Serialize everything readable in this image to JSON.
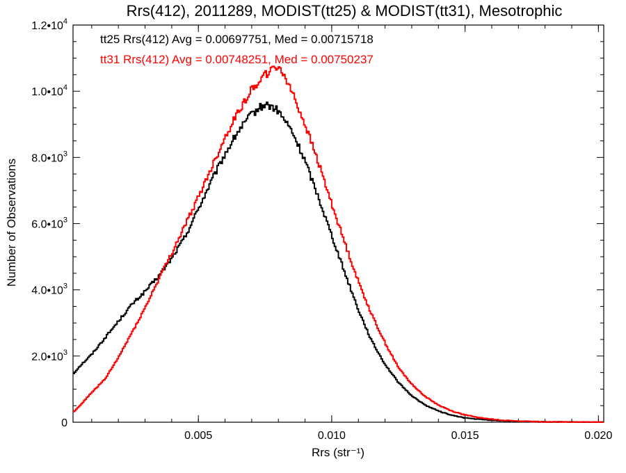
{
  "chart_data": {
    "type": "line",
    "title": "Rrs(412), 2011289, MODIST(tt25) & MODIST(tt31), Mesotrophic",
    "xlabel": "Rrs (str⁻¹)",
    "ylabel": "Number of Observations",
    "xlim": [
      0.0003,
      0.0202
    ],
    "ylim": [
      0,
      12000
    ],
    "xticks": [
      {
        "value": 0.005,
        "label": "0.005"
      },
      {
        "value": 0.01,
        "label": "0.010"
      },
      {
        "value": 0.015,
        "label": "0.015"
      },
      {
        "value": 0.02,
        "label": "0.020"
      }
    ],
    "yticks": [
      {
        "value": 0,
        "mant": "0",
        "exp": ""
      },
      {
        "value": 2000,
        "mant": "2.0•10",
        "exp": "3"
      },
      {
        "value": 4000,
        "mant": "4.0•10",
        "exp": "3"
      },
      {
        "value": 6000,
        "mant": "6.0•10",
        "exp": "3"
      },
      {
        "value": 8000,
        "mant": "8.0•10",
        "exp": "3"
      },
      {
        "value": 10000,
        "mant": "1.0•10",
        "exp": "4"
      },
      {
        "value": 12000,
        "mant": "1.2•10",
        "exp": "4"
      }
    ],
    "grid": false,
    "legend_position": "top-left",
    "series": [
      {
        "name": "tt25",
        "label": "tt25 Rrs(412) Avg = 0.00697751, Med = 0.00715718",
        "color": "#000000",
        "x": [
          0.0003,
          0.0005,
          0.001,
          0.0015,
          0.002,
          0.0025,
          0.003,
          0.0035,
          0.004,
          0.0045,
          0.005,
          0.0055,
          0.006,
          0.0065,
          0.007,
          0.0073,
          0.0075,
          0.0077,
          0.008,
          0.0085,
          0.009,
          0.0095,
          0.01,
          0.0105,
          0.011,
          0.0115,
          0.012,
          0.0125,
          0.013,
          0.0135,
          0.014,
          0.0145,
          0.015,
          0.0155,
          0.016,
          0.0165,
          0.017,
          0.0175,
          0.018,
          0.019,
          0.0202
        ],
        "y": [
          1450,
          1650,
          2050,
          2550,
          3050,
          3550,
          3950,
          4400,
          4950,
          5600,
          6450,
          7300,
          8100,
          8800,
          9300,
          9500,
          9600,
          9550,
          9400,
          8800,
          7900,
          6800,
          5650,
          4500,
          3400,
          2450,
          1750,
          1200,
          800,
          520,
          340,
          210,
          130,
          90,
          60,
          40,
          25,
          15,
          10,
          5,
          0
        ],
        "style": "step"
      },
      {
        "name": "tt31",
        "label": "tt31 Rrs(412) Avg = 0.00748251, Med = 0.00750237",
        "color": "#ff0000",
        "x": [
          0.0003,
          0.0005,
          0.001,
          0.0015,
          0.002,
          0.0025,
          0.003,
          0.0035,
          0.004,
          0.0045,
          0.005,
          0.0055,
          0.006,
          0.0065,
          0.007,
          0.0073,
          0.0075,
          0.0077,
          0.008,
          0.0083,
          0.0085,
          0.009,
          0.0095,
          0.01,
          0.0105,
          0.011,
          0.0115,
          0.012,
          0.0125,
          0.013,
          0.0135,
          0.014,
          0.0145,
          0.015,
          0.0155,
          0.016,
          0.0165,
          0.017,
          0.0175,
          0.018,
          0.019,
          0.0202
        ],
        "y": [
          300,
          450,
          900,
          1300,
          1950,
          2700,
          3450,
          4300,
          5100,
          5950,
          6800,
          7700,
          8600,
          9400,
          10050,
          10350,
          10500,
          10600,
          10750,
          10400,
          10000,
          9000,
          7850,
          6600,
          5400,
          4250,
          3250,
          2400,
          1650,
          1150,
          780,
          520,
          340,
          220,
          140,
          90,
          55,
          35,
          20,
          12,
          5,
          0
        ],
        "style": "step"
      }
    ]
  }
}
